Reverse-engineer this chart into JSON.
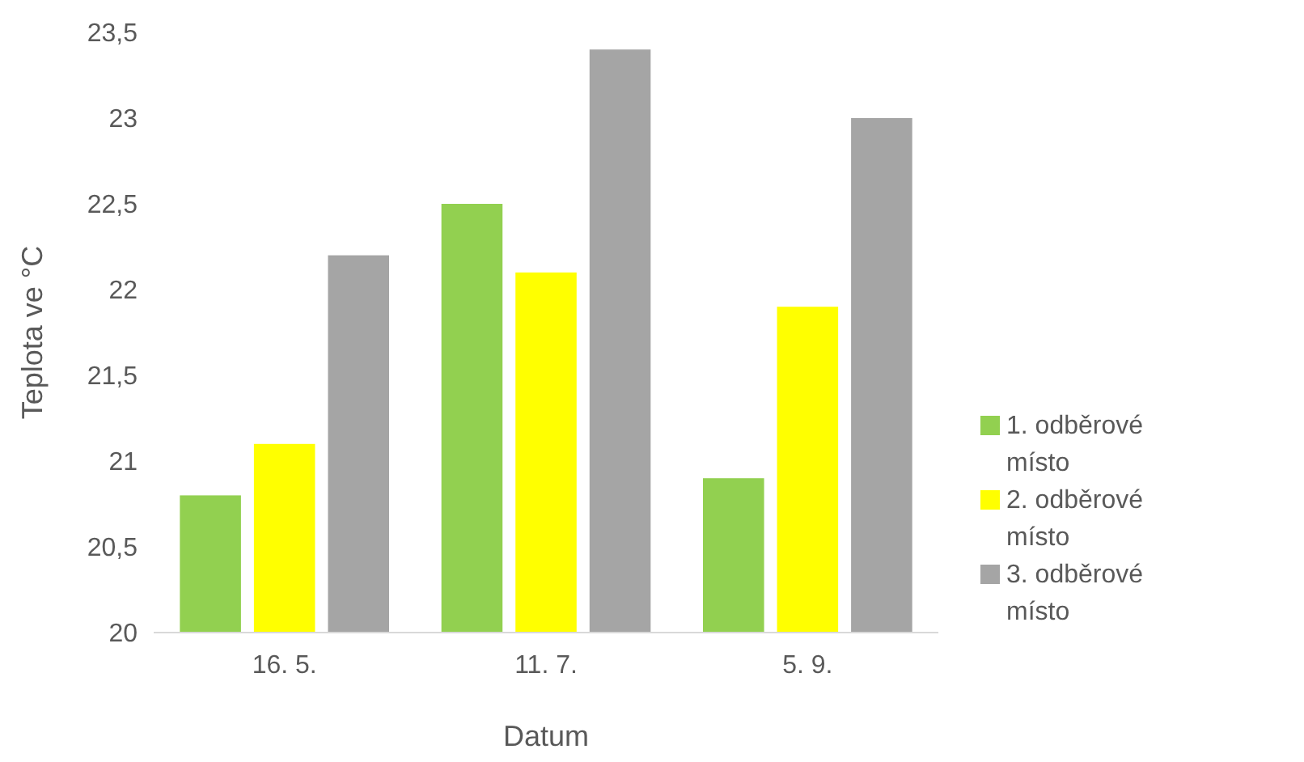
{
  "chart_data": {
    "type": "bar",
    "xlabel": "Datum",
    "ylabel": "Teplota ve °C",
    "categories": [
      "16. 5.",
      "11. 7.",
      "5. 9."
    ],
    "series": [
      {
        "name": "1. odběrové místo",
        "color": "#92d050",
        "values": [
          20.8,
          22.5,
          20.9
        ]
      },
      {
        "name": "2. odběrové místo",
        "color": "#ffff00",
        "values": [
          21.1,
          22.1,
          21.9
        ]
      },
      {
        "name": "3. odběrové místo",
        "color": "#a5a5a5",
        "values": [
          22.2,
          23.4,
          23.0
        ]
      }
    ],
    "ylim": [
      20,
      23.5
    ],
    "yticks": [
      20,
      {
        "value": 20.5,
        "label": "20,5"
      },
      21,
      {
        "value": 21.5,
        "label": "21,5"
      },
      22,
      {
        "value": 22.5,
        "label": "22,5"
      },
      23,
      {
        "value": 23.5,
        "label": "23,5"
      }
    ],
    "grid": false,
    "legend": "right"
  }
}
